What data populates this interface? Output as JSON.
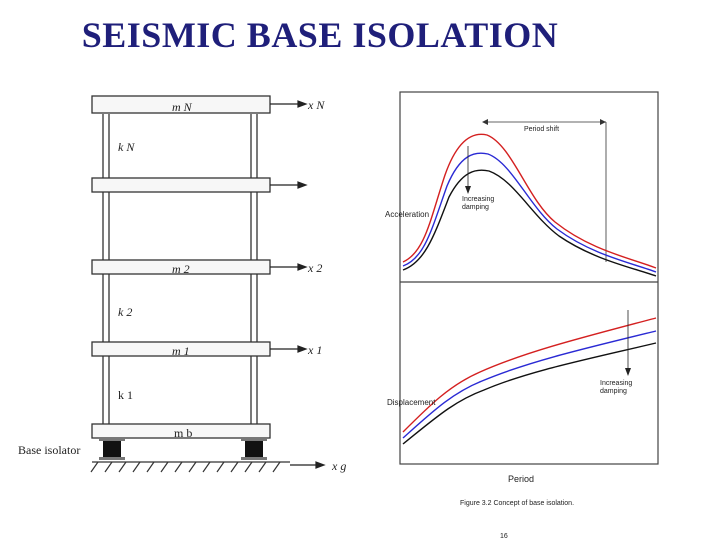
{
  "slide": {
    "title": "SEISMIC BASE ISOLATION",
    "page_number": "16"
  },
  "building": {
    "masses": [
      "m N",
      "m 2",
      "m 1",
      "m b"
    ],
    "stiffness": [
      "k N",
      "k 2",
      "k 1"
    ],
    "displacements": [
      "x N",
      "x 2",
      "x 1",
      "x g"
    ],
    "isolator_label": "Base isolator"
  },
  "plots": {
    "top": {
      "ylabel": "Acceleration",
      "annotation_period_shift": "Period shift",
      "annotation_damping": "Increasing damping"
    },
    "bottom": {
      "ylabel": "Displacement",
      "annotation_damping": "Increasing damping",
      "xlabel": "Period"
    },
    "caption": "Figure 3.2 Concept of base isolation.",
    "colors": {
      "low_damping": "#d42020",
      "mid_damping": "#2a2ad4",
      "high_damping": "#111111"
    }
  }
}
